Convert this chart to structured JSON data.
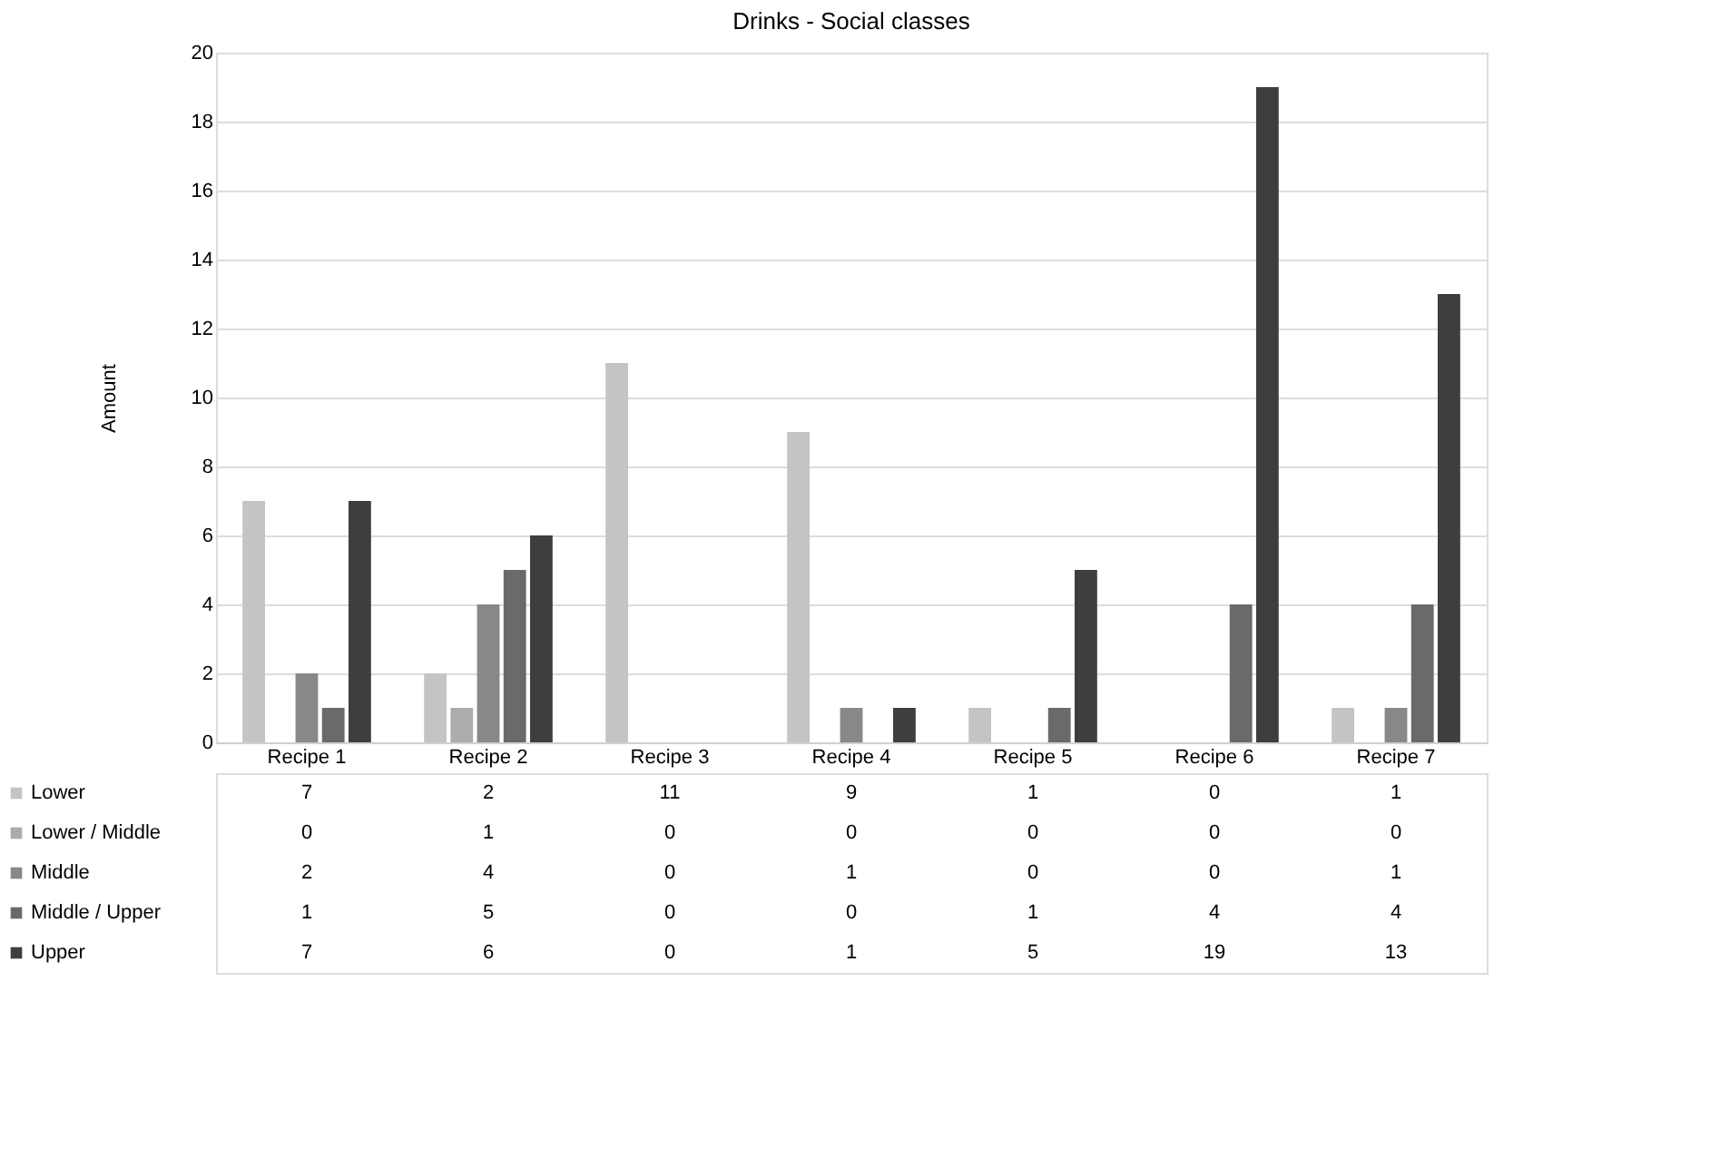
{
  "chart_data": {
    "type": "bar",
    "title": "Drinks - Social classes",
    "ylabel": "Amount",
    "categories": [
      "Recipe 1",
      "Recipe 2",
      "Recipe 3",
      "Recipe 4",
      "Recipe 5",
      "Recipe 6",
      "Recipe 7"
    ],
    "series": [
      {
        "name": "Lower",
        "color": "#c4c4c4",
        "values": [
          7,
          2,
          11,
          9,
          1,
          0,
          1
        ]
      },
      {
        "name": "Lower / Middle",
        "color": "#acacac",
        "values": [
          0,
          1,
          0,
          0,
          0,
          0,
          0
        ]
      },
      {
        "name": "Middle",
        "color": "#888888",
        "values": [
          2,
          4,
          0,
          1,
          0,
          0,
          1
        ]
      },
      {
        "name": "Middle / Upper",
        "color": "#6a6a6a",
        "values": [
          1,
          5,
          0,
          0,
          1,
          4,
          4
        ]
      },
      {
        "name": "Upper",
        "color": "#3e3e3e",
        "values": [
          7,
          6,
          0,
          1,
          5,
          19,
          13
        ]
      }
    ],
    "ylim": [
      0,
      20
    ],
    "yticks": [
      0,
      2,
      4,
      6,
      8,
      10,
      12,
      14,
      16,
      18,
      20
    ],
    "grid": "y",
    "data_labels": true,
    "legend": "bottom left"
  }
}
